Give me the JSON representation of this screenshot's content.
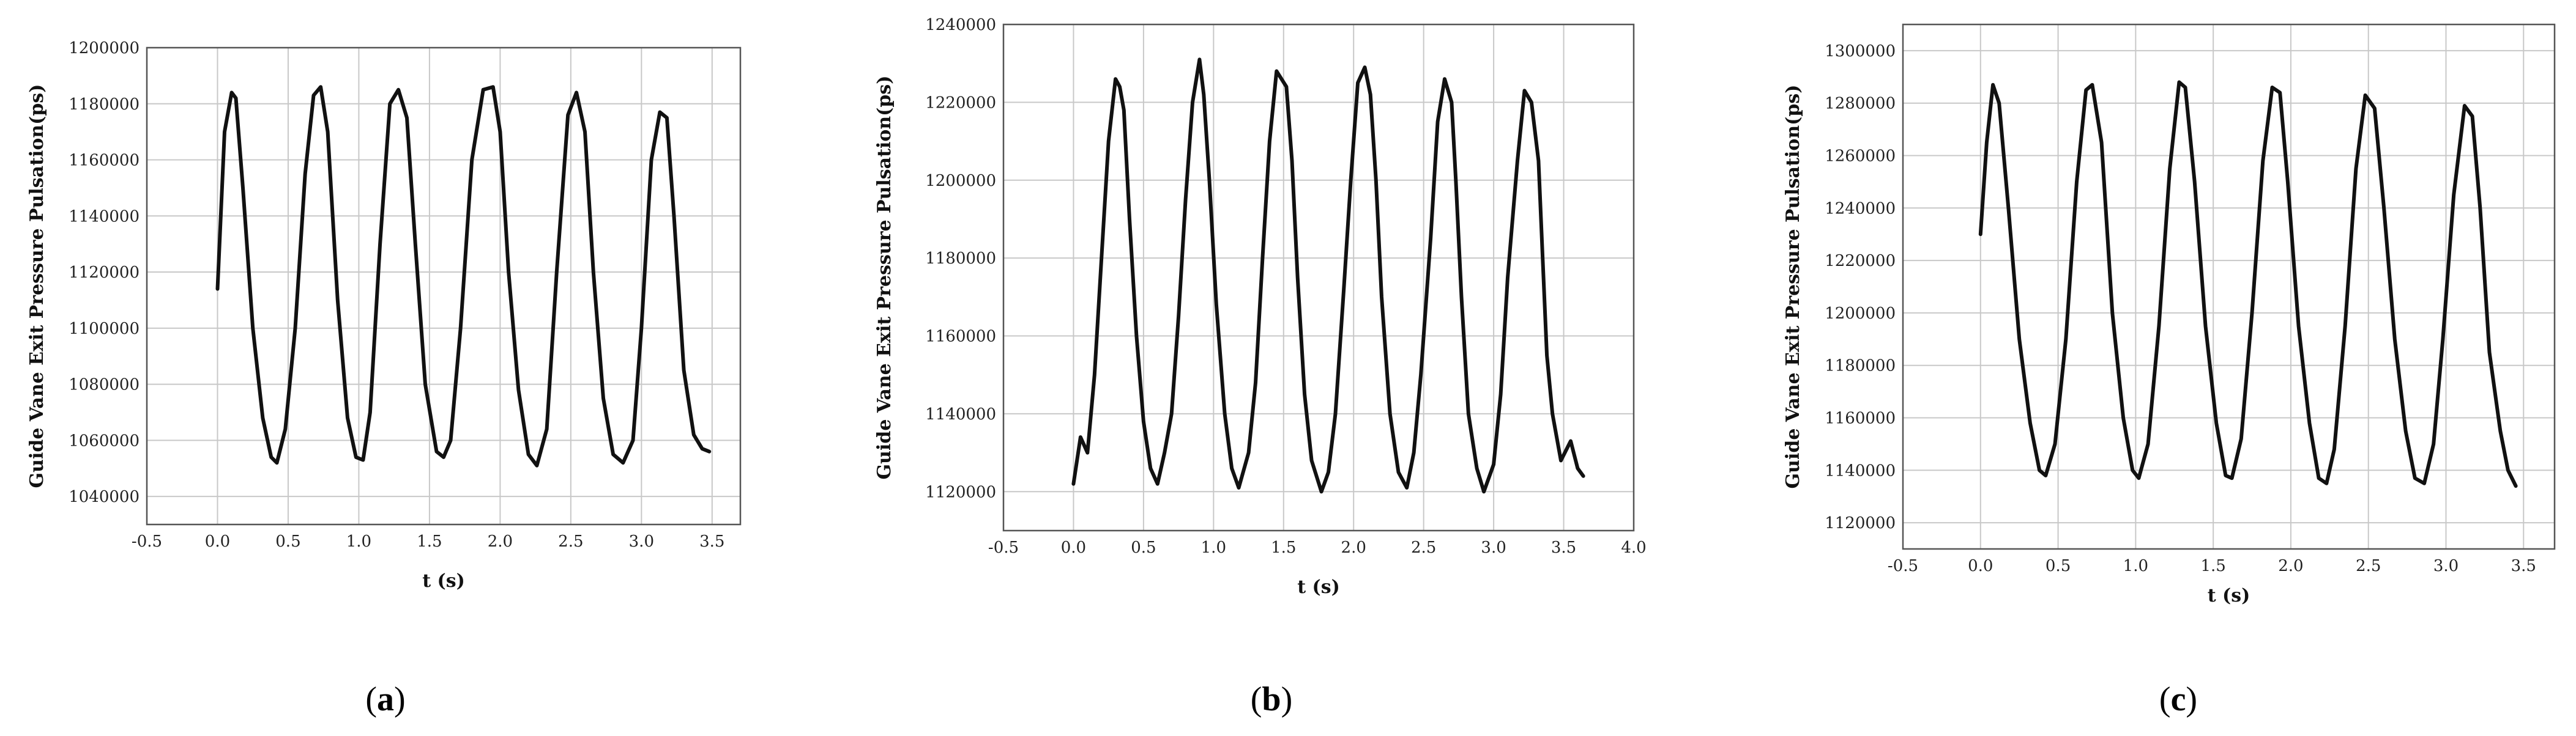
{
  "chart_data": [
    {
      "type": "line",
      "panel": "a",
      "title": "",
      "xlabel": "t (s)",
      "ylabel": "Guide Vane Exit Pressure Pulsation(ps)",
      "xlim": [
        -0.5,
        3.7
      ],
      "ylim": [
        1030000,
        1200000
      ],
      "xticks": [
        "-0.5",
        "0.0",
        "0.5",
        "1.0",
        "1.5",
        "2.0",
        "2.5",
        "3.0",
        "3.5"
      ],
      "yticks": [
        "1040000",
        "1060000",
        "1080000",
        "1100000",
        "1120000",
        "1140000",
        "1160000",
        "1180000",
        "1200000"
      ],
      "grid": true,
      "series": [
        {
          "x": [
            0.0,
            0.05,
            0.1,
            0.13,
            0.18,
            0.25,
            0.32,
            0.38,
            0.42,
            0.48,
            0.55,
            0.62,
            0.68,
            0.73,
            0.78,
            0.85,
            0.92,
            0.98,
            1.03,
            1.08,
            1.15,
            1.22,
            1.28,
            1.34,
            1.4,
            1.47,
            1.55,
            1.6,
            1.65,
            1.72,
            1.8,
            1.88,
            1.95,
            2.0,
            2.06,
            2.13,
            2.2,
            2.26,
            2.33,
            2.4,
            2.48,
            2.54,
            2.6,
            2.66,
            2.73,
            2.8,
            2.87,
            2.94,
            3.0,
            3.07,
            3.13,
            3.18,
            3.23,
            3.3,
            3.37,
            3.43,
            3.48
          ],
          "y": [
            1114000,
            1170000,
            1184000,
            1182000,
            1150000,
            1100000,
            1068000,
            1054000,
            1052000,
            1064000,
            1100000,
            1155000,
            1183000,
            1186000,
            1170000,
            1110000,
            1068000,
            1054000,
            1053000,
            1070000,
            1130000,
            1180000,
            1185000,
            1175000,
            1130000,
            1080000,
            1056000,
            1054000,
            1060000,
            1100000,
            1160000,
            1185000,
            1186000,
            1170000,
            1120000,
            1078000,
            1055000,
            1051000,
            1064000,
            1120000,
            1176000,
            1184000,
            1170000,
            1120000,
            1075000,
            1055000,
            1052000,
            1060000,
            1100000,
            1160000,
            1177000,
            1175000,
            1140000,
            1085000,
            1062000,
            1057000,
            1056000
          ]
        }
      ]
    },
    {
      "type": "line",
      "panel": "b",
      "title": "",
      "xlabel": "t (s)",
      "ylabel": "Guide Vane Exit Pressure Pulsation(ps)",
      "xlim": [
        -0.5,
        4.0
      ],
      "ylim": [
        1110000,
        1240000
      ],
      "xticks": [
        "-0.5",
        "0.0",
        "0.5",
        "1.0",
        "1.5",
        "2.0",
        "2.5",
        "3.0",
        "3.5",
        "4.0"
      ],
      "yticks": [
        "1120000",
        "1140000",
        "1160000",
        "1180000",
        "1200000",
        "1220000",
        "1240000"
      ],
      "grid": true,
      "series": [
        {
          "x": [
            0.0,
            0.05,
            0.1,
            0.15,
            0.2,
            0.25,
            0.3,
            0.33,
            0.36,
            0.4,
            0.45,
            0.5,
            0.55,
            0.6,
            0.65,
            0.7,
            0.75,
            0.8,
            0.85,
            0.9,
            0.93,
            0.97,
            1.02,
            1.08,
            1.13,
            1.18,
            1.25,
            1.3,
            1.35,
            1.4,
            1.45,
            1.52,
            1.56,
            1.6,
            1.65,
            1.7,
            1.77,
            1.82,
            1.87,
            1.93,
            1.98,
            2.03,
            2.08,
            2.12,
            2.16,
            2.2,
            2.26,
            2.32,
            2.38,
            2.43,
            2.48,
            2.55,
            2.6,
            2.65,
            2.7,
            2.73,
            2.77,
            2.82,
            2.88,
            2.93,
            3.0,
            3.05,
            3.1,
            3.17,
            3.22,
            3.27,
            3.32,
            3.35,
            3.38,
            3.42,
            3.48,
            3.55,
            3.6,
            3.64
          ],
          "y": [
            1122000,
            1134000,
            1130000,
            1150000,
            1180000,
            1210000,
            1226000,
            1224000,
            1218000,
            1190000,
            1160000,
            1138000,
            1126000,
            1122000,
            1130000,
            1140000,
            1165000,
            1195000,
            1220000,
            1231000,
            1222000,
            1200000,
            1168000,
            1140000,
            1126000,
            1121000,
            1130000,
            1148000,
            1180000,
            1210000,
            1228000,
            1224000,
            1205000,
            1175000,
            1145000,
            1128000,
            1120000,
            1125000,
            1140000,
            1172000,
            1200000,
            1225000,
            1229000,
            1222000,
            1200000,
            1170000,
            1140000,
            1125000,
            1121000,
            1130000,
            1150000,
            1185000,
            1215000,
            1226000,
            1220000,
            1200000,
            1170000,
            1140000,
            1126000,
            1120000,
            1127000,
            1145000,
            1175000,
            1205000,
            1223000,
            1220000,
            1205000,
            1180000,
            1155000,
            1140000,
            1128000,
            1133000,
            1126000,
            1124000
          ]
        }
      ]
    },
    {
      "type": "line",
      "panel": "c",
      "title": "",
      "xlabel": "t (s)",
      "ylabel": "Guide Vane Exit Pressure Pulsation(ps)",
      "xlim": [
        -0.5,
        3.7
      ],
      "ylim": [
        1110000,
        1310000
      ],
      "xticks": [
        "-0.5",
        "0.0",
        "0.5",
        "1.0",
        "1.5",
        "2.0",
        "2.5",
        "3.0",
        "3.5"
      ],
      "yticks": [
        "1120000",
        "1140000",
        "1160000",
        "1180000",
        "1200000",
        "1220000",
        "1240000",
        "1260000",
        "1280000",
        "1300000"
      ],
      "grid": true,
      "series": [
        {
          "x": [
            0.0,
            0.04,
            0.08,
            0.12,
            0.18,
            0.25,
            0.32,
            0.38,
            0.42,
            0.48,
            0.55,
            0.62,
            0.68,
            0.72,
            0.78,
            0.85,
            0.92,
            0.98,
            1.02,
            1.08,
            1.15,
            1.22,
            1.28,
            1.32,
            1.38,
            1.45,
            1.52,
            1.58,
            1.62,
            1.68,
            1.75,
            1.82,
            1.88,
            1.93,
            1.98,
            2.05,
            2.12,
            2.18,
            2.23,
            2.28,
            2.35,
            2.42,
            2.48,
            2.54,
            2.6,
            2.67,
            2.74,
            2.8,
            2.86,
            2.92,
            2.98,
            3.05,
            3.12,
            3.17,
            3.22,
            3.28,
            3.35,
            3.4,
            3.45
          ],
          "y": [
            1230000,
            1265000,
            1287000,
            1280000,
            1240000,
            1190000,
            1158000,
            1140000,
            1138000,
            1150000,
            1190000,
            1250000,
            1285000,
            1287000,
            1265000,
            1200000,
            1160000,
            1140000,
            1137000,
            1150000,
            1195000,
            1255000,
            1288000,
            1286000,
            1250000,
            1195000,
            1158000,
            1138000,
            1137000,
            1152000,
            1200000,
            1258000,
            1286000,
            1284000,
            1250000,
            1195000,
            1158000,
            1137000,
            1135000,
            1148000,
            1195000,
            1255000,
            1283000,
            1278000,
            1240000,
            1190000,
            1155000,
            1137000,
            1135000,
            1150000,
            1190000,
            1245000,
            1279000,
            1275000,
            1240000,
            1185000,
            1155000,
            1140000,
            1134000
          ]
        }
      ]
    }
  ],
  "panels": {
    "a": {
      "open": "(",
      "letter": "a",
      "close": ")"
    },
    "b": {
      "open": "(",
      "letter": "b",
      "close": ")"
    },
    "c": {
      "open": "(",
      "letter": "c",
      "close": ")"
    }
  }
}
